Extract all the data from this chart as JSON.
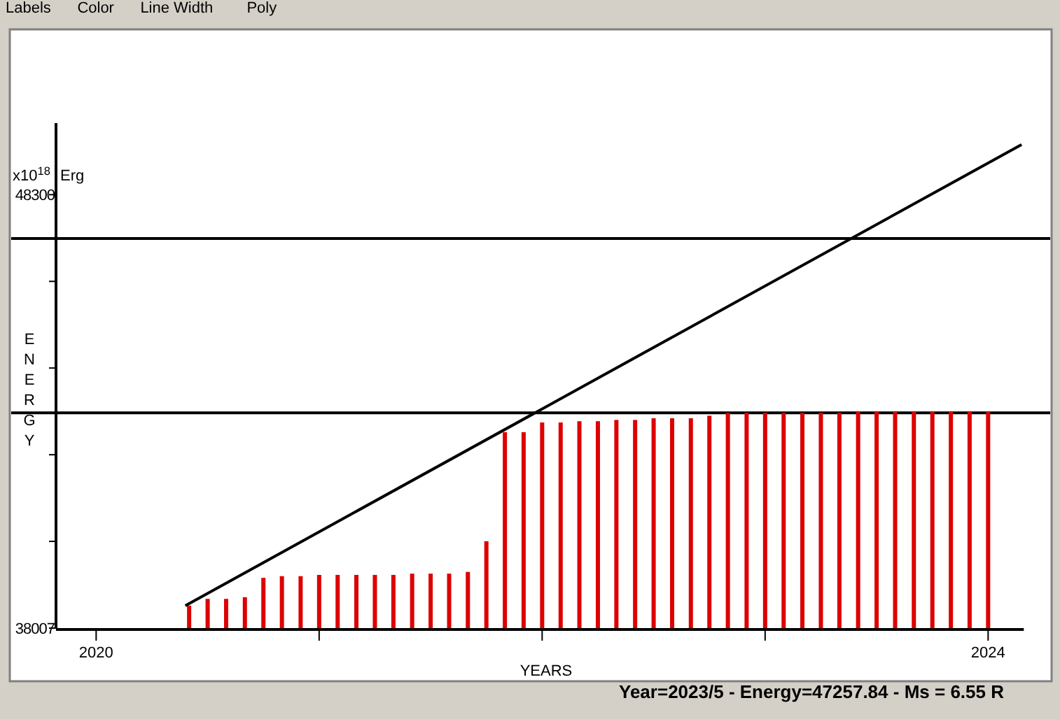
{
  "chart_data": {
    "type": "bar",
    "xlabel": "YEARS",
    "ylabel": "ENERGY",
    "annotations": [
      "x10$^{18}$ Erg",
      "Year=2023/5 - Energy=47257.84 - Ms = 6.55 R",
      "Labels",
      "Color",
      "Line Width",
      "Poly"
    ],
    "x": [
      2020.417,
      2020.5,
      2020.583,
      2020.667,
      2020.75,
      2020.833,
      2020.917,
      2021,
      2021.083,
      2021.167,
      2021.25,
      2021.333,
      2021.417,
      2021.5,
      2021.583,
      2021.667,
      2021.75,
      2021.833,
      2021.917,
      2022,
      2022.083,
      2022.167,
      2022.25,
      2022.333,
      2022.417,
      2022.5,
      2022.583,
      2022.667,
      2022.75,
      2022.833,
      2022.917,
      2023,
      2023.083,
      2023.167,
      2023.25,
      2023.333,
      2023.417,
      2023.5,
      2023.583,
      2023.667,
      2023.75,
      2023.833,
      2023.917,
      2024
    ],
    "series": [
      {
        "color": "#dd0000",
        "values": [
          38540,
          38700,
          38700,
          38740,
          39200,
          39240,
          39240,
          39270,
          39270,
          39270,
          39270,
          39270,
          39300,
          39300,
          39300,
          39340,
          40070,
          42660,
          42660,
          42890,
          42890,
          42920,
          42920,
          42950,
          42950,
          42990,
          42990,
          42990,
          43050,
          43120,
          43120,
          43120,
          43120,
          43120,
          43120,
          43120,
          43150,
          43150,
          43150,
          43150,
          43150,
          43150,
          43150,
          43150
        ]
      },
      {
        "type": "line",
        "color": "#000000",
        "x": [
          2020.4,
          2024.15
        ],
        "values": [
          38540,
          49490
        ]
      }
    ],
    "xlim": [
      2019.82,
      2024.16
    ],
    "ylim": [
      38007,
      50000
    ],
    "xticks": [
      2020,
      {
        "value": 2021,
        "label": null
      },
      {
        "value": 2022,
        "label": null
      },
      {
        "value": 2023,
        "label": null
      },
      2024
    ],
    "yticks": [
      38007,
      {
        "value": 40066,
        "label": null
      },
      {
        "value": 42124,
        "label": null
      },
      {
        "value": 44183,
        "label": null
      },
      {
        "value": 46241,
        "label": null
      },
      48300
    ],
    "ref_lines": [
      {
        "axis": "y",
        "value": 47258,
        "color": "#000000"
      },
      {
        "axis": "y",
        "value": 43120,
        "color": "#000000"
      }
    ]
  }
}
